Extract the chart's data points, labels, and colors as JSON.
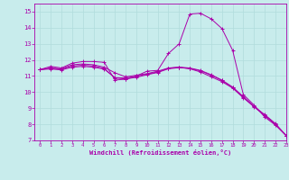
{
  "xlabel": "Windchill (Refroidissement éolien,°C)",
  "xlim": [
    -0.5,
    23
  ],
  "ylim": [
    7,
    15.5
  ],
  "xticks": [
    0,
    1,
    2,
    3,
    4,
    5,
    6,
    7,
    8,
    9,
    10,
    11,
    12,
    13,
    14,
    15,
    16,
    17,
    18,
    19,
    20,
    21,
    22,
    23
  ],
  "yticks": [
    7,
    8,
    9,
    10,
    11,
    12,
    13,
    14,
    15
  ],
  "bg_color": "#c8ecec",
  "line_color": "#aa00aa",
  "grid_color": "#b0dcdc",
  "curves": [
    {
      "x": [
        0,
        1,
        2,
        3,
        4,
        5,
        6,
        7,
        8,
        9,
        10,
        11,
        12,
        13,
        14,
        15,
        16,
        17,
        18,
        19,
        20,
        21,
        22,
        23
      ],
      "y": [
        11.4,
        11.6,
        11.5,
        11.8,
        11.9,
        11.9,
        11.85,
        10.75,
        10.8,
        11.0,
        11.3,
        11.35,
        12.4,
        13.0,
        14.85,
        14.9,
        14.55,
        13.95,
        12.6,
        9.85,
        9.2,
        8.45,
        7.95,
        7.3
      ]
    },
    {
      "x": [
        0,
        1,
        2,
        3,
        4,
        5,
        6,
        7,
        8,
        9,
        10,
        11,
        12,
        13,
        14,
        15,
        16,
        17,
        18,
        19,
        20,
        21,
        22,
        23
      ],
      "y": [
        11.4,
        11.5,
        11.45,
        11.7,
        11.75,
        11.7,
        11.55,
        11.2,
        10.95,
        11.05,
        11.15,
        11.3,
        11.5,
        11.55,
        11.45,
        11.25,
        10.95,
        10.65,
        10.25,
        9.65,
        9.1,
        8.6,
        8.05,
        7.3
      ]
    },
    {
      "x": [
        0,
        1,
        2,
        3,
        4,
        5,
        6,
        7,
        8,
        9,
        10,
        11,
        12,
        13,
        14,
        15,
        16,
        17,
        18,
        19,
        20,
        21,
        22,
        23
      ],
      "y": [
        11.4,
        11.48,
        11.42,
        11.62,
        11.67,
        11.62,
        11.47,
        10.88,
        10.82,
        10.92,
        11.08,
        11.22,
        11.45,
        11.52,
        11.47,
        11.32,
        11.05,
        10.72,
        10.28,
        9.68,
        9.08,
        8.55,
        7.98,
        7.3
      ]
    },
    {
      "x": [
        0,
        1,
        2,
        3,
        4,
        5,
        6,
        7,
        8,
        9,
        10,
        11,
        12,
        13,
        14,
        15,
        16,
        17,
        18,
        19,
        20,
        21,
        22,
        23
      ],
      "y": [
        11.4,
        11.44,
        11.38,
        11.55,
        11.6,
        11.55,
        11.43,
        10.9,
        10.88,
        10.98,
        11.12,
        11.25,
        11.48,
        11.55,
        11.5,
        11.35,
        11.08,
        10.75,
        10.32,
        9.72,
        9.12,
        8.58,
        8.01,
        7.3
      ]
    }
  ]
}
